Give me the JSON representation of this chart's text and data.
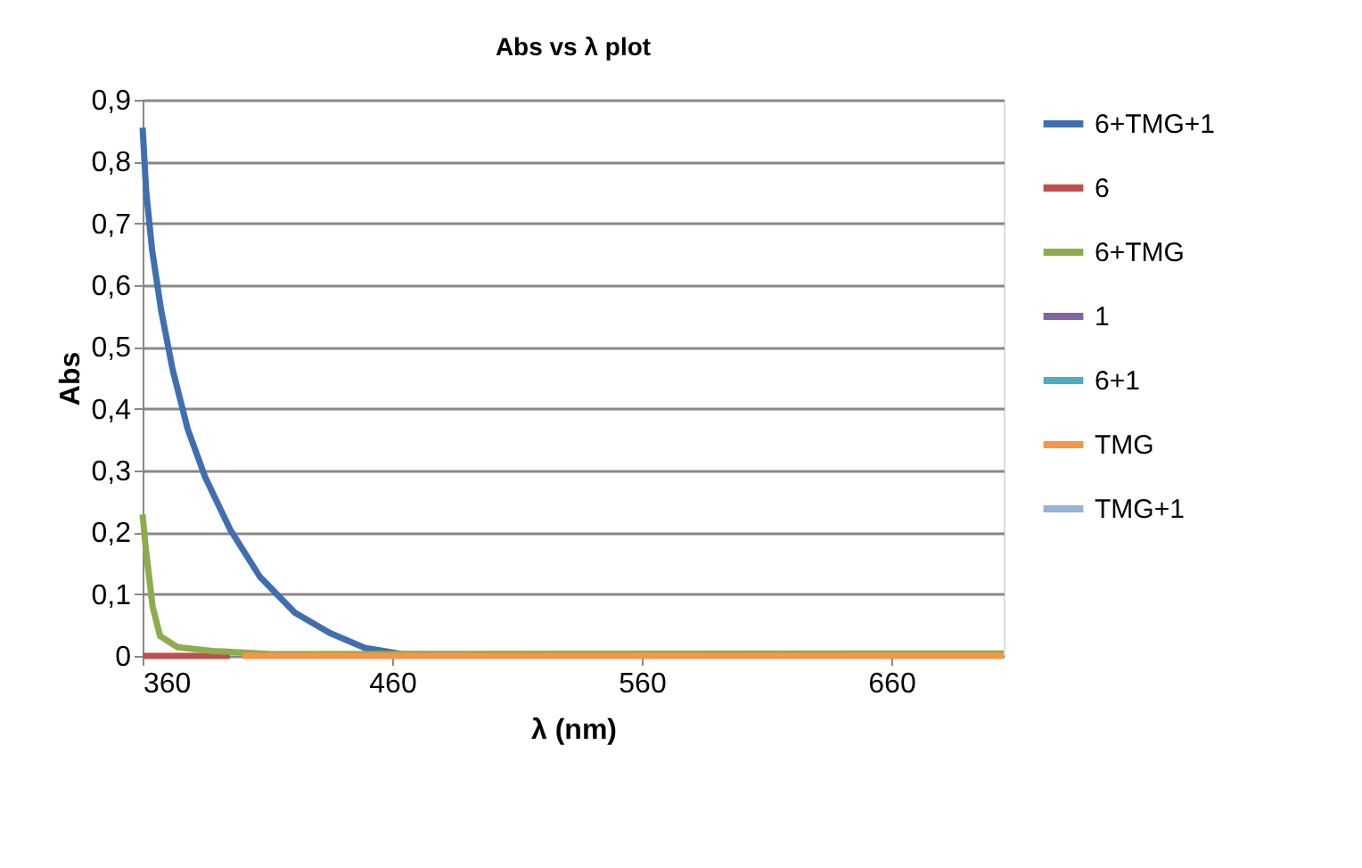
{
  "chart_data": {
    "type": "line",
    "title": "Abs vs λ plot",
    "xlabel": "λ (nm)",
    "ylabel": "Abs",
    "xlim": [
      360,
      705
    ],
    "xticks": [
      360,
      460,
      560,
      660
    ],
    "ylim": [
      0,
      0.9
    ],
    "yticks": [
      {
        "value": 0,
        "label": "0"
      },
      {
        "value": 0.1,
        "label": "0,1"
      },
      {
        "value": 0.2,
        "label": "0,2"
      },
      {
        "value": 0.3,
        "label": "0,3"
      },
      {
        "value": 0.4,
        "label": "0,4"
      },
      {
        "value": 0.5,
        "label": "0,5"
      },
      {
        "value": 0.6,
        "label": "0,6"
      },
      {
        "value": 0.7,
        "label": "0,7"
      },
      {
        "value": 0.8,
        "label": "0,8"
      },
      {
        "value": 0.9,
        "label": "0,9"
      }
    ],
    "grid": "y",
    "legend": "right",
    "marker": "none",
    "line_style": "solid",
    "series": [
      {
        "name": "6+TMG+1",
        "color": "#3f6fb0",
        "x": [
          360,
          361.4,
          363.8,
          367.4,
          372,
          378,
          385,
          395,
          407,
          421,
          435,
          449,
          464,
          480,
          705
        ],
        "values": [
          0.855,
          0.753,
          0.657,
          0.56,
          0.464,
          0.368,
          0.29,
          0.205,
          0.128,
          0.07,
          0.037,
          0.013,
          0.003,
          0.002,
          0.002
        ]
      },
      {
        "name": "6",
        "color": "#c0504d",
        "x": [
          360,
          395
        ],
        "values": [
          0,
          0
        ]
      },
      {
        "name": "6+TMG",
        "color": "#8cac4e",
        "x": [
          360,
          361.2,
          364,
          367,
          374,
          388,
          412,
          705
        ],
        "values": [
          0.229,
          0.176,
          0.08,
          0.032,
          0.014,
          0.008,
          0.003,
          0.004
        ]
      },
      {
        "name": "1",
        "color": "#8064a2"
      },
      {
        "name": "6+1",
        "color": "#4bacc6"
      },
      {
        "name": "TMG",
        "color": "#f79646",
        "x": [
          400,
          705
        ],
        "values": [
          0,
          0
        ]
      },
      {
        "name": "TMG+1",
        "color": "#95b3d7"
      }
    ]
  }
}
